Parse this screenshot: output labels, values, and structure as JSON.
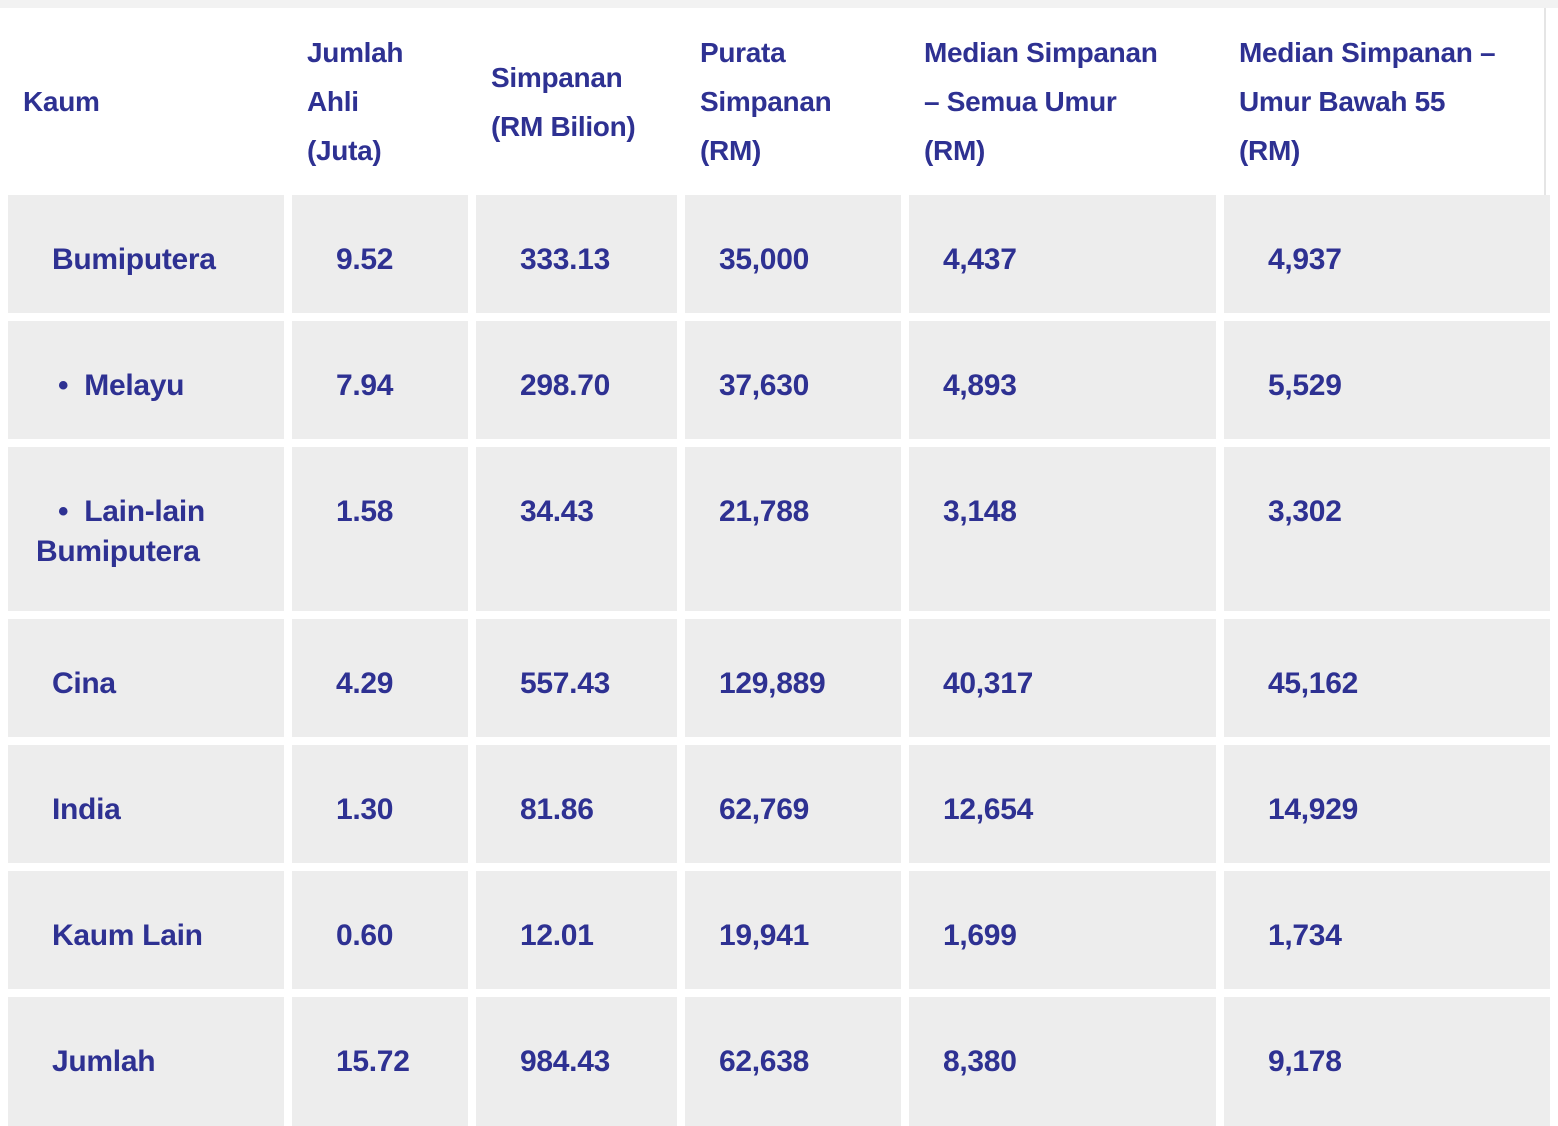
{
  "colors": {
    "text": "#2e3192",
    "cell_background": "#ededed",
    "page_background": "#ffffff",
    "top_strip": "#f2f2f2",
    "header_border": "#e5e5e5"
  },
  "header": {
    "labels": [
      "Kaum",
      "Jumlah\nAhli\n(Juta)",
      "Simpanan\n(RM Bilion)",
      "Purata\nSimpanan\n(RM)",
      "Median Simpanan\n– Semua Umur\n(RM)",
      "Median Simpanan –\nUmur Bawah 55\n(RM)"
    ]
  },
  "chart_data": {
    "type": "table",
    "columns": [
      "Kaum",
      "Jumlah Ahli (Juta)",
      "Simpanan (RM Bilion)",
      "Purata Simpanan (RM)",
      "Median Simpanan – Semua Umur (RM)",
      "Median Simpanan – Umur Bawah 55 (RM)"
    ],
    "rows": [
      {
        "kaum": "Bumiputera",
        "display_label": "Bumiputera",
        "indent": false,
        "values": [
          "9.52",
          "333.13",
          "35,000",
          "4,437",
          "4,937"
        ]
      },
      {
        "kaum": "Melayu",
        "display_label": "•  Melayu",
        "indent": true,
        "values": [
          "7.94",
          "298.70",
          "37,630",
          "4,893",
          "5,529"
        ]
      },
      {
        "kaum": "Lain-lain Bumiputera",
        "display_label": "•  Lain-lain\nBumiputera",
        "indent": true,
        "values": [
          "1.58",
          "34.43",
          "21,788",
          "3,148",
          "3,302"
        ]
      },
      {
        "kaum": "Cina",
        "display_label": "Cina",
        "indent": false,
        "values": [
          "4.29",
          "557.43",
          "129,889",
          "40,317",
          "45,162"
        ]
      },
      {
        "kaum": "India",
        "display_label": "India",
        "indent": false,
        "values": [
          "1.30",
          "81.86",
          "62,769",
          "12,654",
          "14,929"
        ]
      },
      {
        "kaum": "Kaum Lain",
        "display_label": "Kaum Lain",
        "indent": false,
        "values": [
          "0.60",
          "12.01",
          "19,941",
          "1,699",
          "1,734"
        ]
      },
      {
        "kaum": "Jumlah",
        "display_label": "Jumlah",
        "indent": false,
        "values": [
          "15.72",
          "984.43",
          "62,638",
          "8,380",
          "9,178"
        ]
      }
    ]
  }
}
